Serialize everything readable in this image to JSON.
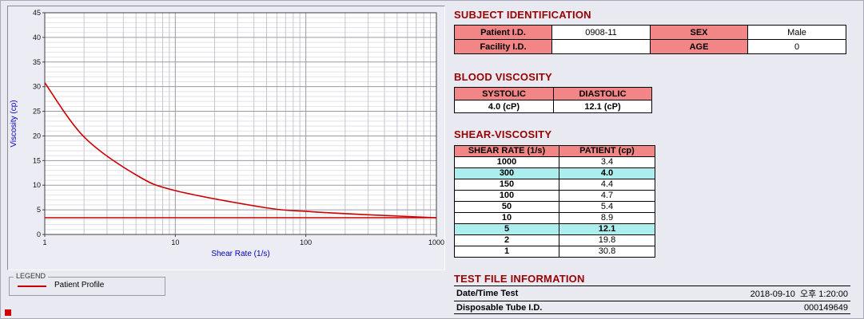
{
  "colors": {
    "header_text": "#990000",
    "table_header_bg": "#f28585",
    "highlight_bg": "#aceeee",
    "axis_label": "#0000bb",
    "series": "#cc0000"
  },
  "chart": {
    "legend_group_label": "LEGEND",
    "legend_series_label": "Patient Profile",
    "xlabel": "Shear Rate (1/s)",
    "ylabel": "Viscosity (cp)",
    "x_ticks": [
      "1",
      "10",
      "100",
      "1000"
    ],
    "y_ticks": [
      0,
      5,
      10,
      15,
      20,
      25,
      30,
      35,
      40,
      45
    ]
  },
  "chart_data": {
    "type": "line",
    "x_scale": "log",
    "x": [
      1,
      2,
      5,
      10,
      50,
      100,
      150,
      300,
      1000
    ],
    "series": [
      {
        "name": "Patient Profile",
        "values": [
          30.8,
          19.8,
          12.1,
          8.9,
          5.4,
          4.7,
          4.4,
          4.0,
          3.4
        ]
      }
    ],
    "baseline": 3.4,
    "xlim": [
      1,
      1000
    ],
    "ylim": [
      0,
      45
    ],
    "grid": true,
    "legend_position": "bottom-left"
  },
  "subject": {
    "title": "SUBJECT IDENTIFICATION",
    "rows": [
      {
        "l1": "Patient I.D.",
        "v1": "0908-11",
        "l2": "SEX",
        "v2": "Male"
      },
      {
        "l1": "Facility I.D.",
        "v1": "",
        "l2": "AGE",
        "v2": "0"
      }
    ]
  },
  "blood": {
    "title": "BLOOD VISCOSITY",
    "headers": [
      "SYSTOLIC",
      "DIASTOLIC"
    ],
    "values": [
      "4.0 (cP)",
      "12.1 (cP)"
    ]
  },
  "shear": {
    "title": "SHEAR-VISCOSITY",
    "headers": [
      "SHEAR RATE (1/s)",
      "PATIENT (cp)"
    ],
    "rows": [
      {
        "rate": "1000",
        "value": "3.4",
        "highlight": false
      },
      {
        "rate": "300",
        "value": "4.0",
        "highlight": true
      },
      {
        "rate": "150",
        "value": "4.4",
        "highlight": false
      },
      {
        "rate": "100",
        "value": "4.7",
        "highlight": false
      },
      {
        "rate": "50",
        "value": "5.4",
        "highlight": false
      },
      {
        "rate": "10",
        "value": "8.9",
        "highlight": false
      },
      {
        "rate": "5",
        "value": "12.1",
        "highlight": true
      },
      {
        "rate": "2",
        "value": "19.8",
        "highlight": false
      },
      {
        "rate": "1",
        "value": "30.8",
        "highlight": false
      }
    ]
  },
  "testfile": {
    "title": "TEST FILE INFORMATION",
    "rows": [
      {
        "label": "Date/Time Test",
        "value": "2018-09-10  오후 1:20:00"
      },
      {
        "label": "Disposable Tube I.D.",
        "value": "000149649"
      }
    ]
  }
}
